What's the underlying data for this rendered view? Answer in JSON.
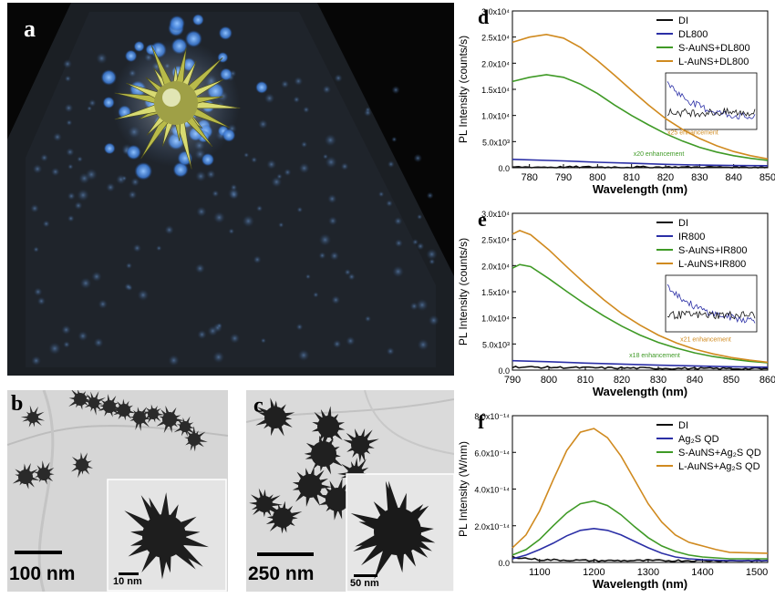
{
  "panel_labels": {
    "a": "a",
    "b": "b",
    "c": "c",
    "d": "d",
    "e": "e",
    "f": "f"
  },
  "images": {
    "b": {
      "scale_main": "100 nm",
      "scale_inset": "10 nm"
    },
    "c": {
      "scale_main": "250 nm",
      "scale_inset": "50 nm"
    }
  },
  "colors": {
    "DI": "#111111",
    "dye": "#2b2fa6",
    "S": "#3f9a26",
    "L": "#d08a1f"
  },
  "chart_data": [
    {
      "panel": "d",
      "type": "line",
      "xlabel": "Wavelength (nm)",
      "ylabel": "PL Intensity (counts/s)",
      "xlim": [
        775,
        850
      ],
      "ylim": [
        0,
        30000
      ],
      "xticks": [
        780,
        790,
        800,
        810,
        820,
        830,
        840,
        850
      ],
      "yticks": [
        0,
        5000,
        10000,
        15000,
        20000,
        25000,
        30000
      ],
      "ytick_labels": [
        "0.0",
        "5.0x10³",
        "1.0x10⁴",
        "1.5x10⁴",
        "2.0x10⁴",
        "2.5x10⁴",
        "3.0x10⁴"
      ],
      "legend_position": "top-right",
      "annotations": [
        {
          "text": "x25 enhancement",
          "x": 828,
          "y": 6400,
          "color": "#d08a1f"
        },
        {
          "text": "x20 enhancement",
          "x": 818,
          "y": 2300,
          "color": "#3f9a26"
        }
      ],
      "inset": {
        "present": true,
        "xlim": [
          760,
          850
        ],
        "ylim": [
          0,
          1500
        ],
        "xticks": [
          760,
          770,
          780,
          790,
          800,
          810,
          820,
          830,
          840,
          850
        ],
        "yticks": [
          0,
          500,
          1000,
          1500
        ]
      },
      "series": [
        {
          "name": "DI",
          "color": "#111111",
          "x": [
            775,
            800,
            825,
            850
          ],
          "y": [
            120,
            110,
            100,
            100
          ]
        },
        {
          "name": "DL800",
          "color": "#2b2fa6",
          "x": [
            775,
            790,
            800,
            810,
            820,
            830,
            840,
            850
          ],
          "y": [
            1600,
            1300,
            1050,
            850,
            650,
            500,
            420,
            380
          ]
        },
        {
          "name": "S-AuNS+DL800",
          "color": "#3f9a26",
          "x": [
            775,
            780,
            785,
            790,
            795,
            800,
            805,
            810,
            815,
            820,
            825,
            830,
            835,
            840,
            845,
            850
          ],
          "y": [
            16500,
            17300,
            17800,
            17300,
            16000,
            14200,
            12000,
            10000,
            8200,
            6500,
            5100,
            3900,
            3000,
            2300,
            1800,
            1400
          ]
        },
        {
          "name": "L-AuNS+DL800",
          "color": "#d08a1f",
          "x": [
            775,
            780,
            785,
            790,
            795,
            800,
            805,
            810,
            815,
            820,
            825,
            830,
            835,
            840,
            845,
            850
          ],
          "y": [
            24000,
            25000,
            25500,
            24800,
            23000,
            20500,
            17700,
            14800,
            12000,
            9400,
            7300,
            5600,
            4200,
            3100,
            2300,
            1700
          ]
        }
      ]
    },
    {
      "panel": "e",
      "type": "line",
      "xlabel": "Wavelength (nm)",
      "ylabel": "PL Intensity (counts/s)",
      "xlim": [
        790,
        860
      ],
      "ylim": [
        0,
        30000
      ],
      "xticks": [
        790,
        800,
        810,
        820,
        830,
        840,
        850,
        860
      ],
      "yticks": [
        0,
        5000,
        10000,
        15000,
        20000,
        25000,
        30000
      ],
      "ytick_labels": [
        "0.0",
        "5.0x10³",
        "1.0x10⁴",
        "1.5x10⁴",
        "2.0x10⁴",
        "2.5x10⁴",
        "3.0x10⁴"
      ],
      "legend_position": "top-right",
      "annotations": [
        {
          "text": "x21 enhancement",
          "x": 843,
          "y": 5500,
          "color": "#d08a1f"
        },
        {
          "text": "x18 enhancement",
          "x": 829,
          "y": 2400,
          "color": "#3f9a26"
        }
      ],
      "inset": {
        "present": true,
        "xlim": [
          790,
          860
        ],
        "ylim": [
          0,
          2500
        ],
        "xticks": [
          790,
          800,
          810,
          820,
          830,
          840,
          850,
          860
        ],
        "yticks": [
          0,
          500,
          1000,
          1500,
          2000,
          2500
        ]
      },
      "series": [
        {
          "name": "DI",
          "color": "#111111",
          "x": [
            790,
            810,
            830,
            860
          ],
          "y": [
            600,
            450,
            350,
            250
          ]
        },
        {
          "name": "IR800",
          "color": "#2b2fa6",
          "x": [
            790,
            800,
            810,
            820,
            830,
            840,
            850,
            860
          ],
          "y": [
            1800,
            1600,
            1350,
            1150,
            950,
            800,
            650,
            550
          ]
        },
        {
          "name": "S-AuNS+IR800",
          "color": "#3f9a26",
          "x": [
            790,
            792,
            795,
            800,
            805,
            810,
            815,
            820,
            825,
            830,
            835,
            840,
            845,
            850,
            855,
            860
          ],
          "y": [
            19500,
            20200,
            19800,
            17500,
            15000,
            12600,
            10400,
            8400,
            6700,
            5300,
            4200,
            3300,
            2600,
            2100,
            1700,
            1400
          ]
        },
        {
          "name": "L-AuNS+IR800",
          "color": "#d08a1f",
          "x": [
            790,
            792,
            795,
            800,
            805,
            810,
            815,
            820,
            825,
            830,
            835,
            840,
            845,
            850,
            855,
            860
          ],
          "y": [
            26000,
            26700,
            25900,
            23000,
            19700,
            16500,
            13500,
            10800,
            8600,
            6700,
            5200,
            4000,
            3100,
            2400,
            1900,
            1500
          ]
        }
      ]
    },
    {
      "panel": "f",
      "type": "line",
      "xlabel": "Wavelength (nm)",
      "ylabel": "PL Intensity (W/nm)",
      "xlim": [
        1050,
        1520
      ],
      "ylim": [
        0,
        8e-14
      ],
      "xticks": [
        1100,
        1200,
        1300,
        1400,
        1500
      ],
      "yticks": [
        0,
        2e-14,
        4e-14,
        6e-14,
        8e-14
      ],
      "ytick_labels": [
        "0.0",
        "2.0x10⁻¹⁴",
        "4.0x10⁻¹⁴",
        "6.0x10⁻¹⁴",
        "8.0x10⁻¹⁴"
      ],
      "legend_position": "top-right",
      "series": [
        {
          "name": "DI",
          "color": "#111111",
          "x": [
            1050,
            1100,
            1200,
            1300,
            1400,
            1520
          ],
          "y": [
            3e-15,
            1.5e-15,
            1e-15,
            1e-15,
            1e-15,
            1e-15
          ]
        },
        {
          "name": "Ag₂S QD",
          "color": "#2b2fa6",
          "x": [
            1050,
            1075,
            1100,
            1125,
            1150,
            1175,
            1200,
            1225,
            1250,
            1275,
            1300,
            1325,
            1350,
            1375,
            1400,
            1450,
            1520
          ],
          "y": [
            2e-15,
            4e-15,
            7e-15,
            1.05e-14,
            1.45e-14,
            1.75e-14,
            1.85e-14,
            1.75e-14,
            1.5e-14,
            1.15e-14,
            8e-15,
            5e-15,
            3e-15,
            2e-15,
            1.5e-15,
            1e-15,
            1e-15
          ]
        },
        {
          "name": "S-AuNS+Ag₂S QD",
          "color": "#3f9a26",
          "x": [
            1050,
            1075,
            1100,
            1125,
            1150,
            1175,
            1200,
            1225,
            1250,
            1275,
            1300,
            1325,
            1350,
            1375,
            1400,
            1450,
            1520
          ],
          "y": [
            4e-15,
            7e-15,
            1.25e-14,
            2e-14,
            2.7e-14,
            3.2e-14,
            3.35e-14,
            3.1e-14,
            2.6e-14,
            1.95e-14,
            1.35e-14,
            9e-15,
            6e-15,
            4e-15,
            3e-15,
            2e-15,
            2e-15
          ]
        },
        {
          "name": "L-AuNS+Ag₂S QD",
          "color": "#d08a1f",
          "x": [
            1050,
            1075,
            1100,
            1125,
            1150,
            1175,
            1200,
            1225,
            1250,
            1275,
            1300,
            1325,
            1350,
            1375,
            1400,
            1425,
            1450,
            1520
          ],
          "y": [
            8e-15,
            1.5e-14,
            2.8e-14,
            4.5e-14,
            6.1e-14,
            7.1e-14,
            7.3e-14,
            6.8e-14,
            5.8e-14,
            4.5e-14,
            3.2e-14,
            2.2e-14,
            1.5e-14,
            1.1e-14,
            9e-15,
            7e-15,
            5.5e-15,
            5e-15
          ]
        }
      ]
    }
  ]
}
